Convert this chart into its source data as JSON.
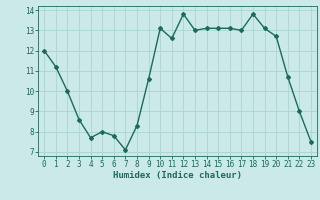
{
  "x": [
    0,
    1,
    2,
    3,
    4,
    5,
    6,
    7,
    8,
    9,
    10,
    11,
    12,
    13,
    14,
    15,
    16,
    17,
    18,
    19,
    20,
    21,
    22,
    23
  ],
  "y": [
    12,
    11.2,
    10,
    8.6,
    7.7,
    8.0,
    7.8,
    7.1,
    8.3,
    10.6,
    13.1,
    12.6,
    13.8,
    13.0,
    13.1,
    13.1,
    13.1,
    13.0,
    13.8,
    13.1,
    12.7,
    10.7,
    9.0,
    7.5
  ],
  "line_color": "#1a6b5a",
  "marker": "D",
  "marker_size": 2,
  "bg_color": "#cce9e9",
  "grid_color": "#aad4d4",
  "xlabel": "Humidex (Indice chaleur)",
  "ylim": [
    6.8,
    14.2
  ],
  "xlim": [
    -0.5,
    23.5
  ],
  "yticks": [
    7,
    8,
    9,
    10,
    11,
    12,
    13,
    14
  ],
  "xticks": [
    0,
    1,
    2,
    3,
    4,
    5,
    6,
    7,
    8,
    9,
    10,
    11,
    12,
    13,
    14,
    15,
    16,
    17,
    18,
    19,
    20,
    21,
    22,
    23
  ],
  "tick_color": "#1a6b5a",
  "label_color": "#1a6b5a",
  "xlabel_fontsize": 6.5,
  "tick_fontsize": 5.5
}
